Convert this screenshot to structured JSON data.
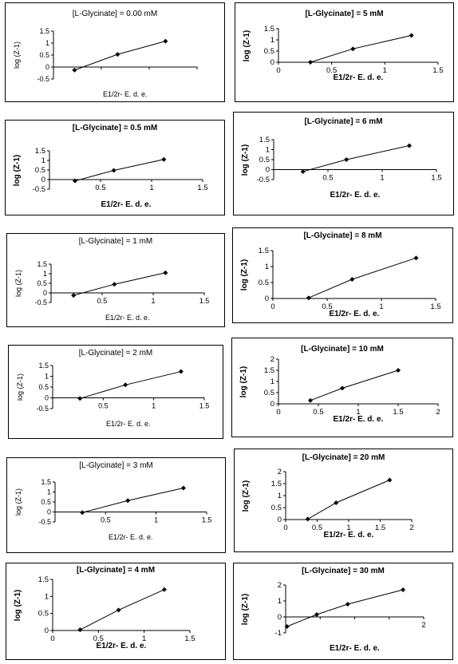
{
  "chart_data": [
    {
      "type": "line",
      "title": "[L-Glycinate] = 0.00 mM",
      "xlabel": "E1/2r- E. d. e.",
      "ylabel": "log (Z-1)",
      "x": [
        0.22,
        0.67,
        1.17
      ],
      "y": [
        -0.13,
        0.53,
        1.08
      ],
      "xlim": [
        0,
        1.5
      ],
      "ylim": [
        -0.5,
        1.5
      ],
      "xticks": [],
      "yticks": [
        "-0.5",
        "0",
        "0.5",
        "1",
        "1.5"
      ],
      "ytick_values": [
        -0.5,
        0,
        0.5,
        1,
        1.5
      ],
      "xtick_values": []
    },
    {
      "type": "line",
      "title": "[L-Glycinate] = 5 mM",
      "xlabel": "E1/2r- E. d. e.",
      "ylabel": "log (Z-1)",
      "x": [
        0.3,
        0.7,
        1.25
      ],
      "y": [
        0.0,
        0.6,
        1.2
      ],
      "xlim": [
        0,
        1.5
      ],
      "ylim": [
        0,
        1.5
      ],
      "xticks": [
        "0",
        "0.5",
        "1",
        "1.5"
      ],
      "xtick_values": [
        0,
        0.5,
        1,
        1.5
      ],
      "yticks": [
        "0",
        "0.5",
        "1",
        "1.5"
      ],
      "ytick_values": [
        0,
        0.5,
        1,
        1.5
      ]
    },
    {
      "type": "line",
      "title": "[L-Glycinate] = 0.5 mM",
      "xlabel": "E1/2r- E. d. e.",
      "ylabel": "log (Z-1)",
      "x": [
        0.25,
        0.63,
        1.12
      ],
      "y": [
        -0.07,
        0.48,
        1.05
      ],
      "xlim": [
        0,
        1.5
      ],
      "ylim": [
        -0.5,
        1.5
      ],
      "xticks": [
        "0.5",
        "1",
        "1.5"
      ],
      "xtick_values": [
        0.5,
        1,
        1.5
      ],
      "yticks": [
        "-0.5",
        "0",
        "0.5",
        "1",
        "1.5"
      ],
      "ytick_values": [
        -0.5,
        0,
        0.5,
        1,
        1.5
      ]
    },
    {
      "type": "line",
      "title": "[L-Glycinate] = 6 mM",
      "xlabel": "E1/2r- E. d. e.",
      "ylabel": "log (Z-1)",
      "x": [
        0.27,
        0.67,
        1.25
      ],
      "y": [
        -0.1,
        0.5,
        1.2
      ],
      "xlim": [
        0,
        1.5
      ],
      "ylim": [
        -0.5,
        1.5
      ],
      "xticks": [
        "0.5",
        "1",
        "1.5"
      ],
      "xtick_values": [
        0.5,
        1,
        1.5
      ],
      "yticks": [
        "-0.5",
        "0",
        "0.5",
        "1",
        "1.5"
      ],
      "ytick_values": [
        -0.5,
        0,
        0.5,
        1,
        1.5
      ]
    },
    {
      "type": "line",
      "title": "[L-Glycinate] = 1 mM",
      "xlabel": "E1/2r- E. d. e.",
      "ylabel": "log (Z-1)",
      "x": [
        0.22,
        0.62,
        1.12
      ],
      "y": [
        -0.13,
        0.45,
        1.05
      ],
      "xlim": [
        0,
        1.5
      ],
      "ylim": [
        -0.5,
        1.5
      ],
      "xticks": [
        "0.5",
        "1",
        "1.5"
      ],
      "xtick_values": [
        0.5,
        1,
        1.5
      ],
      "yticks": [
        "-0.5",
        "0",
        "0.5",
        "1",
        "1.5"
      ],
      "ytick_values": [
        -0.5,
        0,
        0.5,
        1,
        1.5
      ]
    },
    {
      "type": "line",
      "title": "[L-Glycinate] = 8 mM",
      "xlabel": "E1/2r- E. d. e.",
      "ylabel": "log (Z-1)",
      "x": [
        0.33,
        0.73,
        1.32
      ],
      "y": [
        0.02,
        0.6,
        1.27
      ],
      "xlim": [
        0,
        1.5
      ],
      "ylim": [
        0,
        1.5
      ],
      "xticks": [
        "0",
        "0.5",
        "1",
        "1.5"
      ],
      "xtick_values": [
        0,
        0.5,
        1,
        1.5
      ],
      "yticks": [
        "0",
        "0.5",
        "1",
        "1.5"
      ],
      "ytick_values": [
        0,
        0.5,
        1,
        1.5
      ]
    },
    {
      "type": "line",
      "title": "[L-Glycinate] = 2 mM",
      "xlabel": "E1/2r- E. d. e.",
      "ylabel": "log (Z-1)",
      "x": [
        0.27,
        0.72,
        1.27
      ],
      "y": [
        -0.03,
        0.6,
        1.22
      ],
      "xlim": [
        0,
        1.5
      ],
      "ylim": [
        -0.5,
        1.5
      ],
      "xticks": [
        "0.5",
        "1",
        "1.5"
      ],
      "xtick_values": [
        0.5,
        1,
        1.5
      ],
      "yticks": [
        "-0.5",
        "0",
        "0.5",
        "1",
        "1.5"
      ],
      "ytick_values": [
        -0.5,
        0,
        0.5,
        1,
        1.5
      ]
    },
    {
      "type": "line",
      "title": "[L-Glycinate] = 10 mM",
      "xlabel": "E1/2r- E. d. e.",
      "ylabel": "log (Z-1)",
      "x": [
        0.4,
        0.8,
        1.5
      ],
      "y": [
        0.15,
        0.7,
        1.5
      ],
      "xlim": [
        0,
        2
      ],
      "ylim": [
        0,
        2
      ],
      "xticks": [
        "0",
        "0.5",
        "1",
        "1.5",
        "2"
      ],
      "xtick_values": [
        0,
        0.5,
        1,
        1.5,
        2
      ],
      "yticks": [
        "0",
        "0.5",
        "1",
        "1.5",
        "2"
      ],
      "ytick_values": [
        0,
        0.5,
        1,
        1.5,
        2
      ]
    },
    {
      "type": "line",
      "title": "[L-Glycinate] = 3 mM",
      "xlabel": "E1/2r- E. d. e.",
      "ylabel": "log (Z-1)",
      "x": [
        0.27,
        0.72,
        1.27
      ],
      "y": [
        -0.03,
        0.57,
        1.2
      ],
      "xlim": [
        0,
        1.5
      ],
      "ylim": [
        -0.5,
        1.5
      ],
      "xticks": [
        "0.5",
        "1",
        "1.5"
      ],
      "xtick_values": [
        0.5,
        1,
        1.5
      ],
      "yticks": [
        "-0.5",
        "0",
        "0.5",
        "1",
        "1.5"
      ],
      "ytick_values": [
        -0.5,
        0,
        0.5,
        1,
        1.5
      ]
    },
    {
      "type": "line",
      "title": "[L-Glycinate] = 20 mM",
      "xlabel": "E1/2r- E. d. e.",
      "ylabel": "log (Z-1)",
      "x": [
        0.35,
        0.8,
        1.65
      ],
      "y": [
        0.02,
        0.7,
        1.65
      ],
      "xlim": [
        0,
        2
      ],
      "ylim": [
        0,
        2
      ],
      "xticks": [
        "0",
        "0.5",
        "1",
        "1.5",
        "2"
      ],
      "xtick_values": [
        0,
        0.5,
        1,
        1.5,
        2
      ],
      "yticks": [
        "0",
        "0.5",
        "1",
        "1.5",
        "2"
      ],
      "ytick_values": [
        0,
        0.5,
        1,
        1.5,
        2
      ]
    },
    {
      "type": "line",
      "title": "[L-Glycinate] = 4 mM",
      "xlabel": "E1/2r- E. d. e.",
      "ylabel": "log (Z-1)",
      "x": [
        0.3,
        0.72,
        1.22
      ],
      "y": [
        0.02,
        0.6,
        1.2
      ],
      "xlim": [
        0,
        1.5
      ],
      "ylim": [
        0,
        1.5
      ],
      "xticks": [
        "0",
        "0.5",
        "1",
        "1.5"
      ],
      "xtick_values": [
        0,
        0.5,
        1,
        1.5
      ],
      "yticks": [
        "0",
        "0.5",
        "1",
        "1.5"
      ],
      "ytick_values": [
        0,
        0.5,
        1,
        1.5
      ]
    },
    {
      "type": "line",
      "title": "[L-Glycinate] = 30 mM",
      "xlabel": "E1/2r- E. d. e.",
      "ylabel": "log (Z-1)",
      "x": [
        0.02,
        0.45,
        0.9,
        1.7
      ],
      "y": [
        -0.6,
        0.15,
        0.8,
        1.7
      ],
      "xlim": [
        0,
        2
      ],
      "ylim": [
        -1,
        2
      ],
      "xticks": [
        "2"
      ],
      "xtick_values": [
        2
      ],
      "yticks": [
        "-1",
        "0",
        "1",
        "2"
      ],
      "ytick_values": [
        -1,
        0,
        1,
        2
      ]
    }
  ]
}
